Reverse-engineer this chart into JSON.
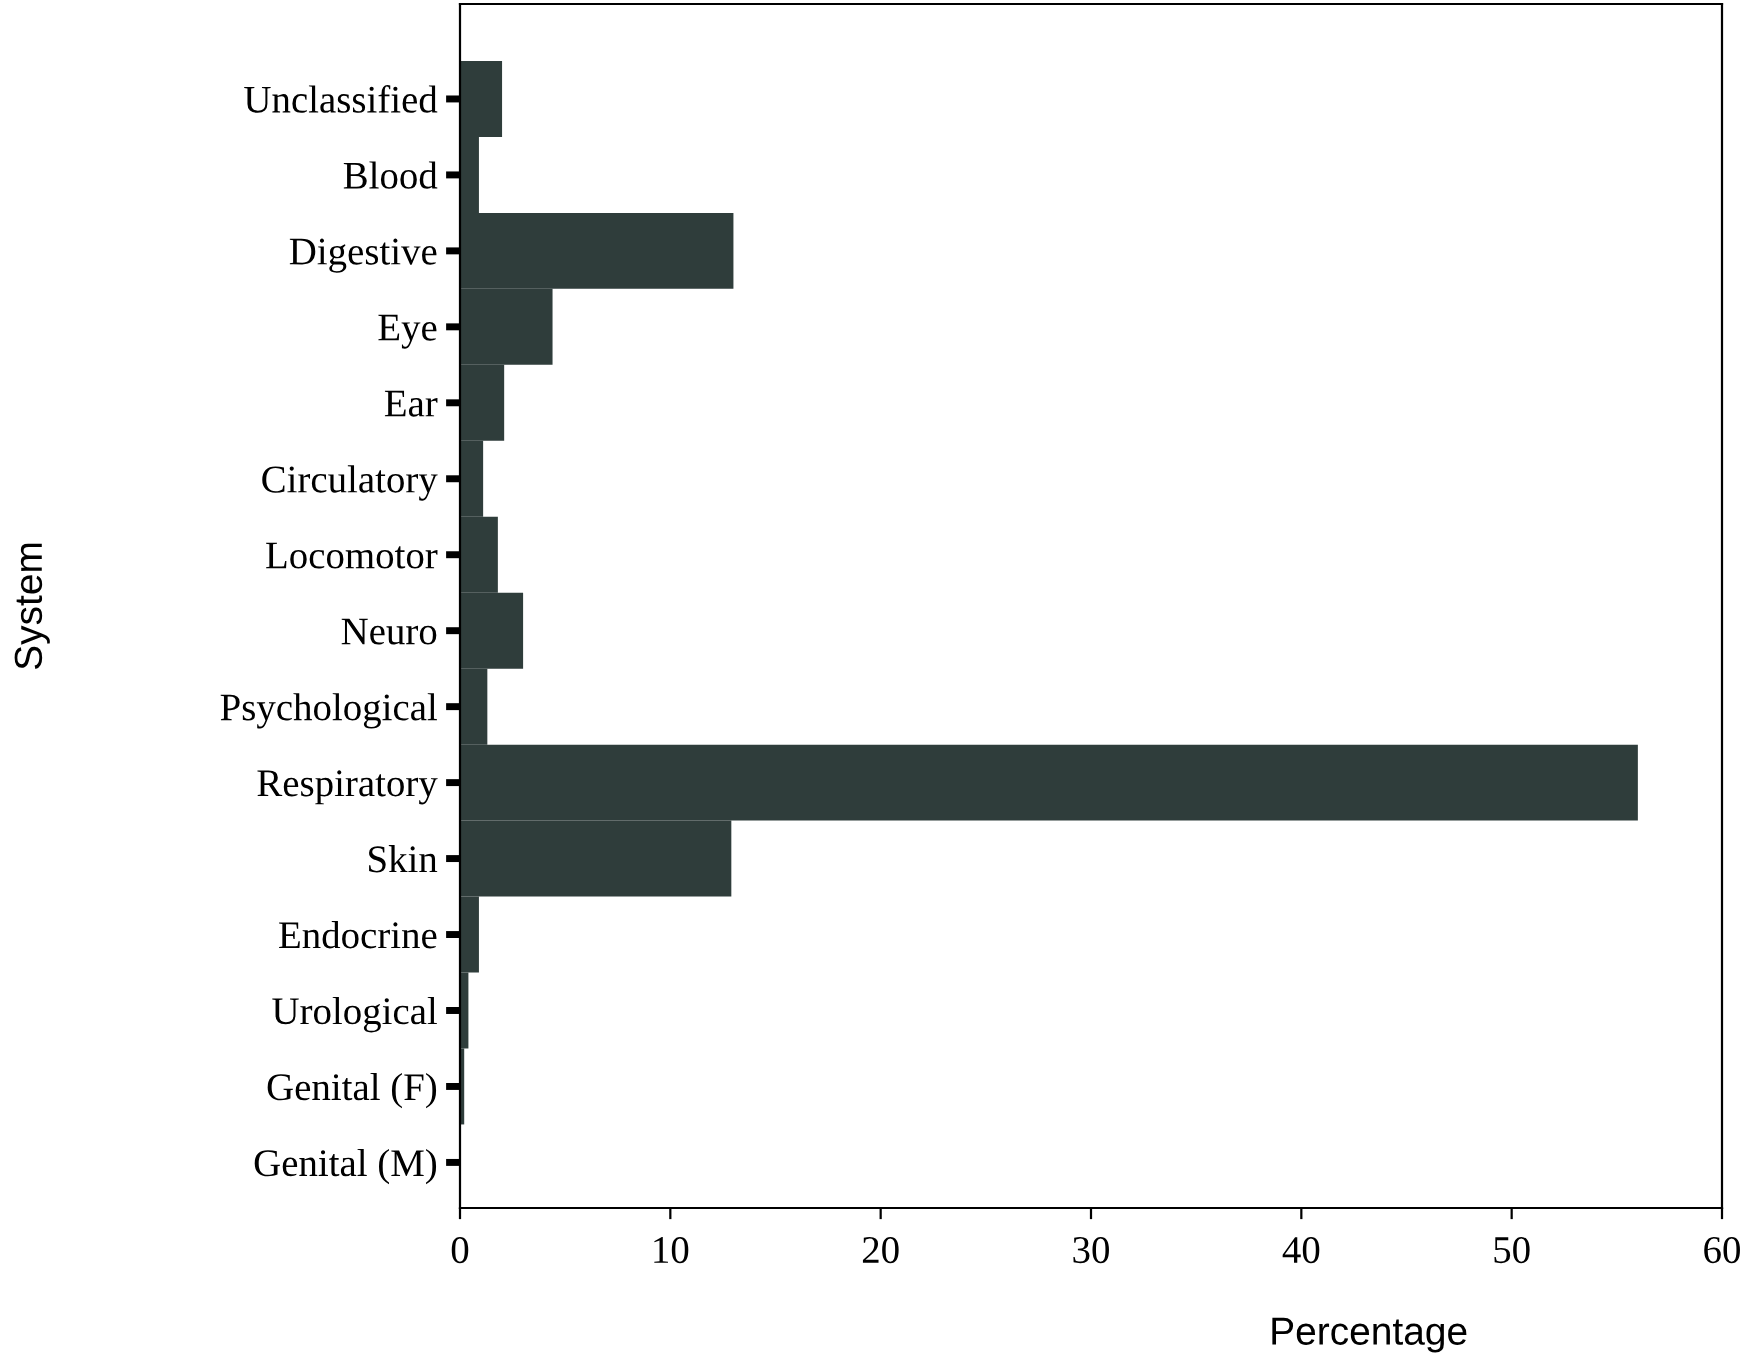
{
  "chart_data": {
    "type": "bar",
    "orientation": "horizontal",
    "xlabel": "Percentage",
    "ylabel": "System",
    "categories": [
      "Unclassified",
      "Blood",
      "Digestive",
      "Eye",
      "Ear",
      "Circulatory",
      "Locomotor",
      "Neuro",
      "Psychological",
      "Respiratory",
      "Skin",
      "Endocrine",
      "Urological",
      "Genital (F)",
      "Genital (M)"
    ],
    "values": [
      2.0,
      0.9,
      13.0,
      4.4,
      2.1,
      1.1,
      1.8,
      3.0,
      1.3,
      56.0,
      12.9,
      0.9,
      0.4,
      0.2,
      null
    ],
    "color": "#2f3d3b",
    "xlim": [
      0,
      60
    ],
    "xticks": [
      0,
      10,
      20,
      30,
      40,
      50,
      60
    ],
    "grid": false,
    "legend": false
  }
}
